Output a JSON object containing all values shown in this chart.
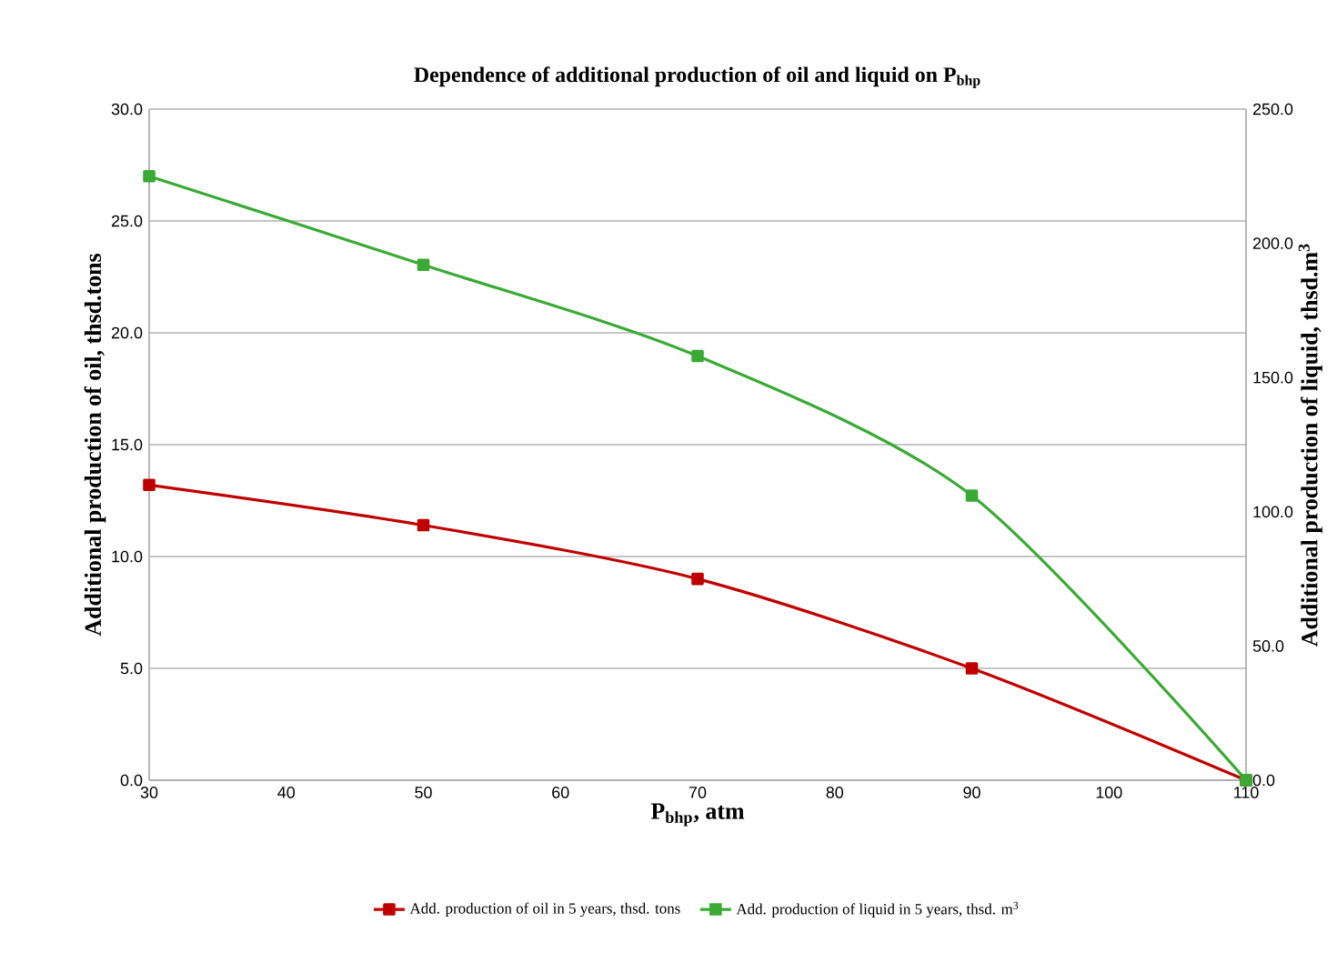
{
  "chart_data": {
    "type": "line",
    "title": "Dependence of additional production of oil and liquid on P$_{bhp}$",
    "xlabel": "P$_{bhp}$, atm",
    "ylabel": "Additional production of oil, thsd.tons",
    "y2label": "Additional production of liquid, thsd.m$^{3}$",
    "x": [
      30,
      50,
      70,
      90,
      110
    ],
    "series": [
      {
        "name": "Add. production of oil in 5 years, thsd. tons",
        "color": "#c00000",
        "values": [
          13.2,
          11.4,
          9.0,
          5.0,
          0
        ]
      },
      {
        "name": "Add. production of liquid in 5 years, thsd. m$^{3}$",
        "color": "#3aaa35",
        "values": [
          225,
          192,
          158,
          106,
          0
        ],
        "axis": "y2"
      }
    ],
    "xlim": [
      30,
      110
    ],
    "xticks": [
      30,
      40,
      50,
      60,
      70,
      80,
      90,
      100,
      110
    ],
    "ylim": [
      0,
      30
    ],
    "yticks": [
      {
        "value": 0,
        "label": "0.0"
      },
      {
        "value": 5,
        "label": "5.0"
      },
      {
        "value": 10,
        "label": "10.0"
      },
      {
        "value": 15,
        "label": "15.0"
      },
      {
        "value": 20,
        "label": "20.0"
      },
      {
        "value": 25,
        "label": "25.0"
      },
      {
        "value": 30,
        "label": "30.0"
      }
    ],
    "y2lim": [
      0,
      250
    ],
    "y2ticks": [
      {
        "value": 0,
        "label": "0.0"
      },
      {
        "value": 50,
        "label": "50.0"
      },
      {
        "value": 100,
        "label": "100.0"
      },
      {
        "value": 150,
        "label": "150.0"
      },
      {
        "value": 200,
        "label": "200.0"
      },
      {
        "value": 250,
        "label": "250.0"
      }
    ],
    "grid": "y",
    "legend": "bottom",
    "marker": "square",
    "line_style": "solid"
  }
}
